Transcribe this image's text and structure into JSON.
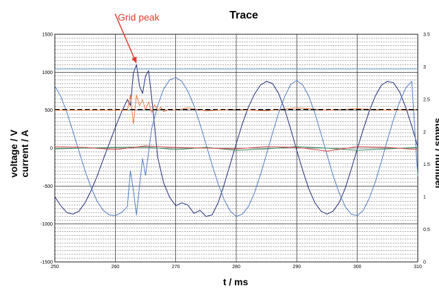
{
  "chart_data": {
    "type": "line",
    "title": "Trace",
    "xlabel": "t / ms",
    "ylabel_lines": [
      "voltage / V",
      "current / A"
    ],
    "y2label": "status / number",
    "xlim": [
      250,
      310
    ],
    "ylim": [
      -1500,
      1500
    ],
    "y2lim": [
      0,
      3.5
    ],
    "x_ticks": [
      "250",
      "260",
      "270",
      "280",
      "290",
      "300",
      "310"
    ],
    "y_ticks": [
      "1500",
      "1000",
      "500",
      "0",
      "-500",
      "-1000",
      "-1500"
    ],
    "y2_ticks": [
      "3.5",
      "3",
      "2.5",
      "2",
      "1.5",
      "1",
      "0.5",
      "0"
    ],
    "grid": true,
    "annotation": {
      "text": "Grid peak",
      "x": 263.5,
      "y": 1080,
      "color": "#e23b2e"
    },
    "series": [
      {
        "color": "#1e2a78",
        "x": [
          250,
          251,
          252,
          253,
          254,
          255,
          256,
          257,
          258,
          259,
          260,
          261,
          262,
          262.5,
          263,
          263.5,
          264,
          264.5,
          265,
          265.5,
          266,
          266.5,
          267,
          268,
          269,
          270,
          271,
          272,
          273,
          274,
          275,
          276,
          277,
          278,
          279,
          280,
          281,
          282,
          283,
          284,
          285,
          286,
          287,
          288,
          289,
          290,
          291,
          292,
          293,
          294,
          295,
          296,
          297,
          298,
          299,
          300,
          301,
          302,
          303,
          304,
          305,
          306,
          307,
          308,
          309,
          310
        ],
        "y": [
          -640,
          -760,
          -850,
          -870,
          -830,
          -720,
          -560,
          -370,
          -150,
          60,
          270,
          470,
          640,
          560,
          990,
          1100,
          820,
          720,
          950,
          1020,
          680,
          280,
          -120,
          -460,
          -650,
          -760,
          -720,
          -750,
          -860,
          -820,
          -900,
          -880,
          -720,
          -480,
          -210,
          60,
          320,
          540,
          710,
          830,
          880,
          850,
          720,
          510,
          250,
          -30,
          -300,
          -540,
          -720,
          -830,
          -870,
          -830,
          -720,
          -530,
          -280,
          -10,
          250,
          490,
          690,
          830,
          880,
          860,
          740,
          540,
          290,
          20
        ]
      },
      {
        "color": "#4f7cc4",
        "x": [
          250,
          251,
          252,
          253,
          254,
          255,
          256,
          257,
          258,
          259,
          260,
          261,
          262,
          262.5,
          263,
          263.5,
          264,
          264.5,
          265,
          265.5,
          266,
          267,
          268,
          269,
          270,
          271,
          272,
          273,
          274,
          275,
          276,
          277,
          278,
          279,
          280,
          281,
          282,
          283,
          284,
          285,
          286,
          287,
          288,
          289,
          290,
          291,
          292,
          293,
          294,
          295,
          296,
          297,
          298,
          299,
          300,
          301,
          302,
          303,
          304,
          305,
          306,
          307,
          308,
          309,
          310
        ],
        "y": [
          820,
          680,
          470,
          220,
          -40,
          -300,
          -520,
          -700,
          -820,
          -880,
          -890,
          -850,
          -770,
          -300,
          -560,
          -880,
          -500,
          -140,
          -360,
          -60,
          250,
          560,
          780,
          900,
          930,
          880,
          750,
          560,
          320,
          50,
          -220,
          -470,
          -680,
          -830,
          -900,
          -870,
          -770,
          -590,
          -350,
          -80,
          200,
          460,
          680,
          840,
          890,
          830,
          680,
          460,
          190,
          -90,
          -360,
          -590,
          -770,
          -870,
          -890,
          -820,
          -660,
          -440,
          -170,
          110,
          380,
          610,
          790,
          880,
          -370
        ]
      },
      {
        "color": "#f07b46",
        "x": [
          250,
          255,
          260,
          262,
          262.5,
          263,
          263.5,
          264,
          264.5,
          265,
          265.5,
          266,
          266.5,
          267,
          267.5,
          268,
          269,
          270,
          272,
          275,
          280,
          285,
          290,
          295,
          300,
          305,
          310
        ],
        "y": [
          500,
          500,
          500,
          500,
          700,
          320,
          700,
          560,
          640,
          500,
          610,
          470,
          570,
          490,
          540,
          480,
          510,
          500,
          530,
          490,
          510,
          490,
          530,
          500,
          520,
          500,
          510
        ]
      },
      {
        "color": "#000000",
        "x": [
          250,
          260,
          270,
          280,
          290,
          300,
          310
        ],
        "y": [
          510,
          510,
          510,
          510,
          510,
          510,
          510
        ]
      },
      {
        "color": "#2e8b57",
        "x": [
          250,
          255,
          260,
          265,
          270,
          275,
          280,
          285,
          290,
          295,
          300,
          305,
          310
        ],
        "y": [
          -10,
          0,
          10,
          15,
          -20,
          10,
          -30,
          -10,
          20,
          0,
          -30,
          -10,
          10
        ]
      },
      {
        "color": "#d64541",
        "x": [
          250,
          255,
          260,
          265,
          270,
          275,
          280,
          285,
          290,
          295,
          300,
          305,
          310
        ],
        "y": [
          20,
          10,
          -20,
          30,
          10,
          0,
          -10,
          20,
          10,
          -40,
          20,
          10,
          -20
        ]
      },
      {
        "color": "#6fb3e0",
        "x": [
          250,
          310
        ],
        "y": [
          1040,
          1040
        ]
      }
    ]
  }
}
